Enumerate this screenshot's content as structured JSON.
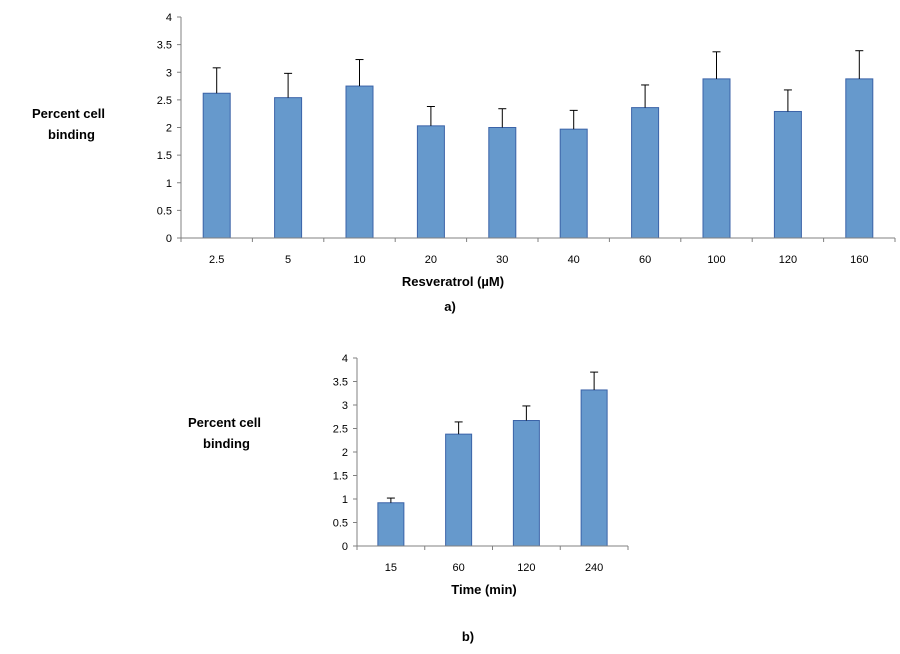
{
  "colors": {
    "bar_fill": "#6699cc",
    "bar_stroke": "#3b63a8",
    "axis": "#808080",
    "error_bar": "#000000"
  },
  "chart_data": [
    {
      "type": "bar",
      "panel_label": "a)",
      "title": "",
      "xlabel": "Resveratrol (µM)",
      "ylabel_lines": [
        "Percent cell",
        "binding"
      ],
      "categories": [
        "2.5",
        "5",
        "10",
        "20",
        "30",
        "40",
        "60",
        "100",
        "120",
        "160"
      ],
      "values": [
        2.62,
        2.54,
        2.75,
        2.03,
        2.0,
        1.97,
        2.36,
        2.88,
        2.29,
        2.88
      ],
      "errors": [
        0.46,
        0.44,
        0.48,
        0.35,
        0.34,
        0.34,
        0.41,
        0.49,
        0.39,
        0.51
      ],
      "ylim": [
        0,
        4
      ],
      "yticks": [
        "0",
        "0.5",
        "1",
        "1.5",
        "2",
        "2.5",
        "3",
        "3.5",
        "4"
      ],
      "grid": false,
      "legend": "none"
    },
    {
      "type": "bar",
      "panel_label": "b)",
      "title": "",
      "xlabel": "Time (min)",
      "ylabel_lines": [
        "Percent cell",
        "binding"
      ],
      "categories": [
        "15",
        "60",
        "120",
        "240"
      ],
      "values": [
        0.92,
        2.38,
        2.67,
        3.32
      ],
      "errors": [
        0.1,
        0.26,
        0.31,
        0.38
      ],
      "ylim": [
        0,
        4
      ],
      "yticks": [
        "0",
        "0.5",
        "1",
        "1.5",
        "2",
        "2.5",
        "3",
        "3.5",
        "4"
      ],
      "grid": false,
      "legend": "none"
    }
  ]
}
